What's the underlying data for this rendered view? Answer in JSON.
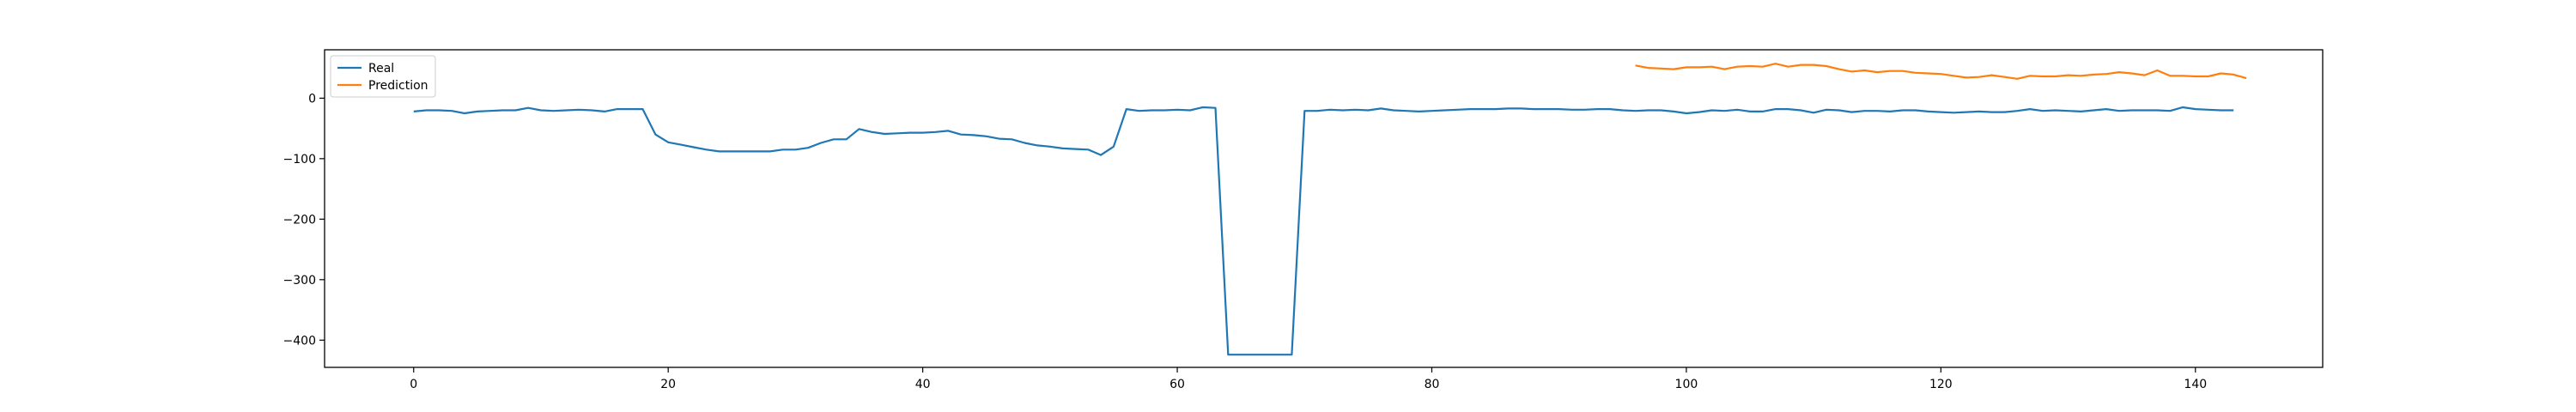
{
  "chart_data": {
    "type": "line",
    "title": "",
    "xlabel": "",
    "ylabel": "",
    "xlim": [
      -7,
      150
    ],
    "ylim": [
      -445,
      80
    ],
    "xticks": [
      0,
      20,
      40,
      60,
      80,
      100,
      120,
      140
    ],
    "yticks": [
      0,
      -100,
      -200,
      -300,
      -400
    ],
    "xtick_labels": [
      "0",
      "20",
      "40",
      "60",
      "80",
      "100",
      "120",
      "140"
    ],
    "ytick_labels": [
      "0",
      "−100",
      "−200",
      "−300",
      "−400"
    ],
    "grid": false,
    "legend": {
      "placement": "top-left",
      "entries": [
        "Real",
        "Prediction"
      ]
    },
    "series": [
      {
        "name": "Real",
        "color": "#1f77b4",
        "x_start": 0,
        "values": [
          -22,
          -20,
          -20,
          -21,
          -25,
          -22,
          -21,
          -20,
          -20,
          -16,
          -20,
          -21,
          -20,
          -19,
          -20,
          -22,
          -18,
          -18,
          -18,
          -60,
          -73,
          -77,
          -81,
          -85,
          -88,
          -88,
          -88,
          -88,
          -88,
          -85,
          -85,
          -82,
          -74,
          -68,
          -68,
          -51,
          -56,
          -59,
          -58,
          -57,
          -57,
          -56,
          -54,
          -60,
          -61,
          -63,
          -67,
          -68,
          -74,
          -78,
          -80,
          -83,
          -84,
          -85,
          -94,
          -80,
          -18,
          -21,
          -20,
          -20,
          -19,
          -20,
          -15,
          -16,
          -424,
          -424,
          -424,
          -424,
          -424,
          -424,
          -21,
          -21,
          -19,
          -20,
          -19,
          -20,
          -17,
          -20,
          -21,
          -22,
          -21,
          -20,
          -19,
          -18,
          -18,
          -18,
          -17,
          -17,
          -18,
          -18,
          -18,
          -19,
          -19,
          -18,
          -18,
          -20,
          -21,
          -20,
          -20,
          -22,
          -25,
          -23,
          -20,
          -21,
          -19,
          -22,
          -22,
          -18,
          -18,
          -20,
          -24,
          -19,
          -20,
          -23,
          -21,
          -21,
          -22,
          -20,
          -20,
          -22,
          -23,
          -24,
          -23,
          -22,
          -23,
          -23,
          -21,
          -18,
          -21,
          -20,
          -21,
          -22,
          -20,
          -18,
          -21,
          -20,
          -20,
          -20,
          -21,
          -15,
          -18,
          -19,
          -20,
          -20
        ]
      },
      {
        "name": "Prediction",
        "color": "#ff7f0e",
        "x_start": 96,
        "values": [
          54,
          50,
          49,
          48,
          51,
          51,
          52,
          48,
          52,
          53,
          52,
          57,
          52,
          55,
          55,
          53,
          48,
          44,
          46,
          43,
          45,
          45,
          42,
          41,
          40,
          37,
          34,
          35,
          38,
          35,
          32,
          37,
          36,
          36,
          38,
          37,
          39,
          40,
          43,
          41,
          38,
          46,
          37,
          37,
          36,
          36,
          41,
          39,
          33
        ]
      }
    ]
  }
}
